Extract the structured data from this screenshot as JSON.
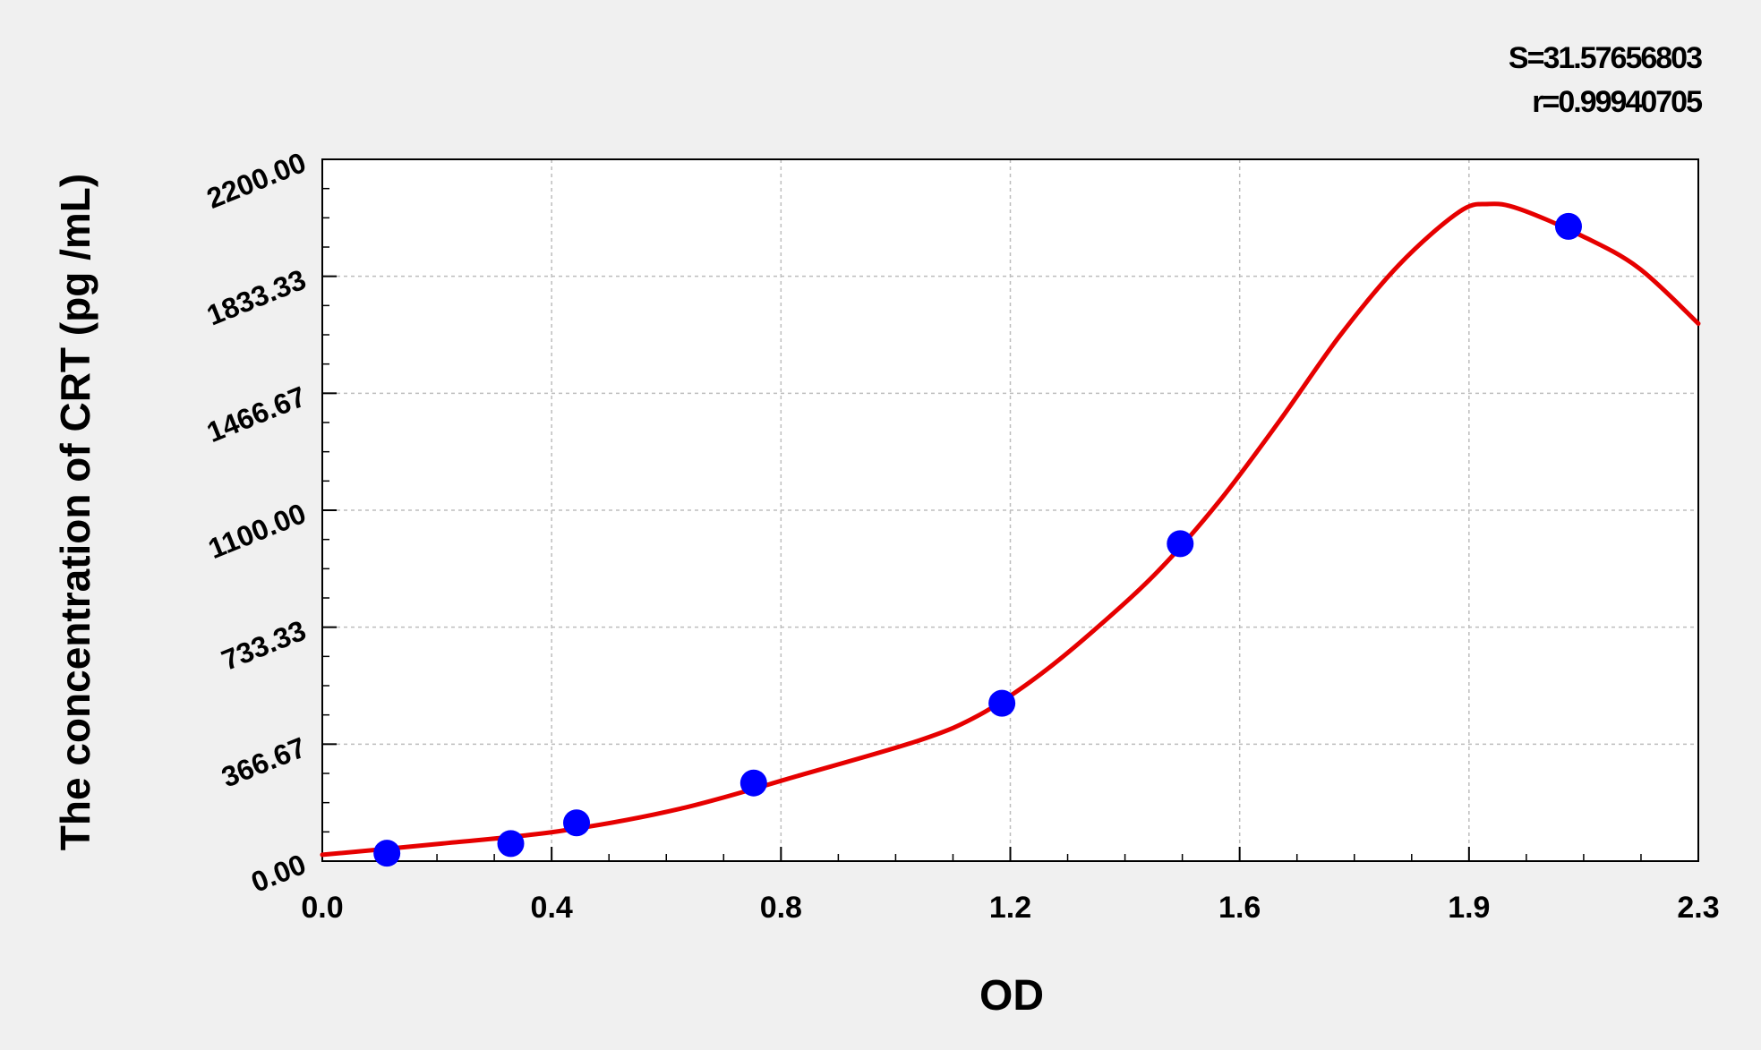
{
  "chart_data": {
    "type": "scatter",
    "xlabel": "OD",
    "ylabel": "The concentration of CRT  (pg /mL)",
    "xlim": [
      0.0,
      2.3
    ],
    "ylim": [
      0.0,
      2200.0
    ],
    "x_ticks": [
      "0.0",
      "0.4",
      "0.8",
      "1.2",
      "1.6",
      "1.9",
      "2.3"
    ],
    "y_ticks": [
      "0.00",
      "366.67",
      "733.33",
      "1100.00",
      "1466.67",
      "1833.33",
      "2200.00"
    ],
    "grid": true,
    "annotations": {
      "s_text": "S=31.57656803",
      "r_text": "r=0.99940705"
    },
    "series": [
      {
        "type": "scatter",
        "color": "#0000ff",
        "x": [
          0.108,
          0.315,
          0.425,
          0.721,
          1.136,
          1.434,
          2.083
        ],
        "y": [
          25,
          55,
          120,
          245,
          495,
          995,
          1990
        ]
      },
      {
        "type": "line",
        "color": "#e60000",
        "x": [
          0.0,
          0.2,
          0.4,
          0.6,
          0.8,
          1.0,
          1.1,
          1.2,
          1.3,
          1.4,
          1.5,
          1.6,
          1.7,
          1.8,
          1.9,
          1.95,
          2.0,
          2.1,
          2.2,
          2.3
        ],
        "y": [
          20,
          55,
          95,
          165,
          270,
          380,
          460,
          585,
          740,
          915,
          1130,
          1380,
          1645,
          1870,
          2035,
          2060,
          2045,
          1965,
          1860,
          1685
        ]
      }
    ]
  }
}
